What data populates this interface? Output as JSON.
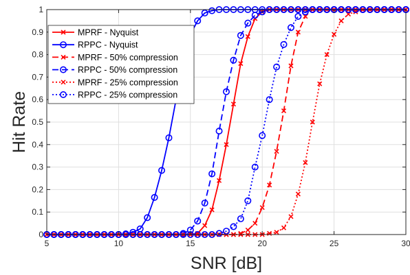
{
  "chart_data": {
    "type": "line",
    "xlabel": "SNR [dB]",
    "ylabel": "Hit Rate",
    "xlim": [
      5,
      30
    ],
    "ylim": [
      0,
      1
    ],
    "grid": true,
    "legend_placement": "top-left",
    "x_ticks": [
      5,
      10,
      15,
      20,
      25,
      30
    ],
    "y_ticks": [
      0,
      0.1,
      0.2,
      0.3,
      0.4,
      0.5,
      0.6,
      0.7,
      0.8,
      0.9,
      1
    ],
    "x_tick_labels": [
      "5",
      "10",
      "15",
      "20",
      "25",
      "30"
    ],
    "y_tick_labels": [
      "0",
      "0.1",
      "0.2",
      "0.3",
      "0.4",
      "0.5",
      "0.6",
      "0.7",
      "0.8",
      "0.9",
      "1"
    ],
    "x": [
      5,
      5.5,
      6,
      6.5,
      7,
      7.5,
      8,
      8.5,
      9,
      9.5,
      10,
      10.5,
      11,
      11.5,
      12,
      12.5,
      13,
      13.5,
      14,
      14.5,
      15,
      15.5,
      16,
      16.5,
      17,
      17.5,
      18,
      18.5,
      19,
      19.5,
      20,
      20.5,
      21,
      21.5,
      22,
      22.5,
      23,
      23.5,
      24,
      24.5,
      25,
      25.5,
      26,
      26.5,
      27,
      27.5,
      28,
      28.5,
      29,
      29.5,
      30
    ],
    "series": [
      {
        "name": "MPRF - Nyquist",
        "color": "#ff0000",
        "line_style": "solid",
        "marker": "x",
        "values": [
          0,
          0,
          0,
          0,
          0,
          0,
          0,
          0,
          0,
          0,
          0,
          0,
          0,
          0,
          0,
          0,
          0,
          0,
          0,
          0,
          0,
          0.005,
          0.04,
          0.11,
          0.24,
          0.4,
          0.58,
          0.76,
          0.88,
          0.96,
          0.99,
          1,
          1,
          1,
          1,
          1,
          1,
          1,
          1,
          1,
          1,
          1,
          1,
          1,
          1,
          1,
          1,
          1,
          1,
          1,
          1
        ]
      },
      {
        "name": "RPPC - Nyquist",
        "color": "#0000ff",
        "line_style": "solid",
        "marker": "o",
        "values": [
          0,
          0,
          0,
          0,
          0,
          0,
          0,
          0,
          0,
          0,
          0,
          0.003,
          0.01,
          0.025,
          0.075,
          0.165,
          0.285,
          0.43,
          0.6,
          0.78,
          0.89,
          0.95,
          0.985,
          0.995,
          1,
          1,
          1,
          1,
          1,
          1,
          1,
          1,
          1,
          1,
          1,
          1,
          1,
          1,
          1,
          1,
          1,
          1,
          1,
          1,
          1,
          1,
          1,
          1,
          1,
          1,
          1
        ]
      },
      {
        "name": "MPRF - 50% compression",
        "color": "#ff0000",
        "line_style": "dashed",
        "marker": "x",
        "values": [
          0,
          0,
          0,
          0,
          0,
          0,
          0,
          0,
          0,
          0,
          0,
          0,
          0,
          0,
          0,
          0,
          0,
          0,
          0,
          0,
          0,
          0,
          0,
          0,
          0,
          0,
          0,
          0.005,
          0.02,
          0.05,
          0.12,
          0.22,
          0.37,
          0.55,
          0.75,
          0.9,
          0.97,
          1,
          1,
          1,
          1,
          1,
          1,
          1,
          1,
          1,
          1,
          1,
          1,
          1,
          1
        ]
      },
      {
        "name": "RPPC - 50% compression",
        "color": "#0000ff",
        "line_style": "dashed",
        "marker": "o",
        "values": [
          0,
          0,
          0,
          0,
          0,
          0,
          0,
          0,
          0,
          0,
          0,
          0,
          0,
          0,
          0,
          0,
          0,
          0,
          0,
          0.005,
          0.02,
          0.06,
          0.14,
          0.27,
          0.46,
          0.635,
          0.775,
          0.885,
          0.94,
          0.975,
          0.99,
          1,
          1,
          1,
          1,
          1,
          1,
          1,
          1,
          1,
          1,
          1,
          1,
          1,
          1,
          1,
          1,
          1,
          1,
          1,
          1
        ]
      },
      {
        "name": "MPRF - 25% compression",
        "color": "#ff0000",
        "line_style": "dotted",
        "marker": "x",
        "values": [
          0,
          0,
          0,
          0,
          0,
          0,
          0,
          0,
          0,
          0,
          0,
          0,
          0,
          0,
          0,
          0,
          0,
          0,
          0,
          0,
          0,
          0,
          0,
          0,
          0,
          0,
          0,
          0,
          0,
          0,
          0,
          0.005,
          0.01,
          0.03,
          0.08,
          0.18,
          0.32,
          0.5,
          0.67,
          0.8,
          0.89,
          0.95,
          0.98,
          0.99,
          1,
          1,
          1,
          1,
          1,
          1,
          1
        ]
      },
      {
        "name": "RPPC - 25% compression",
        "color": "#0000ff",
        "line_style": "dotted",
        "marker": "o",
        "values": [
          0,
          0,
          0,
          0,
          0,
          0,
          0,
          0,
          0,
          0,
          0,
          0,
          0,
          0,
          0,
          0,
          0,
          0,
          0,
          0,
          0,
          0,
          0,
          0,
          0.005,
          0.015,
          0.035,
          0.07,
          0.15,
          0.3,
          0.44,
          0.6,
          0.745,
          0.845,
          0.92,
          0.97,
          0.99,
          1,
          1,
          1,
          1,
          1,
          1,
          1,
          1,
          1,
          1,
          1,
          1,
          1,
          1
        ]
      }
    ]
  }
}
